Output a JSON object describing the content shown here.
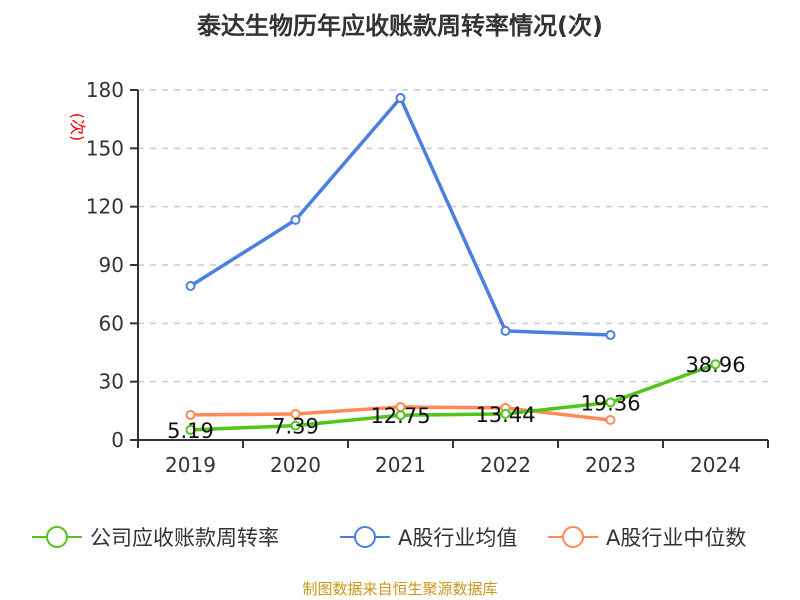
{
  "chart_data": {
    "type": "line",
    "title": "泰达生物历年应收账款周转率情况(次)",
    "ylabel": "(次)",
    "xlabel": "",
    "categories": [
      "2019",
      "2020",
      "2021",
      "2022",
      "2023",
      "2024"
    ],
    "ylim": [
      0,
      180
    ],
    "yticks": [
      0,
      30,
      60,
      90,
      120,
      150,
      180
    ],
    "grid": true,
    "legend_position": "bottom",
    "series": [
      {
        "name": "公司应收账款周转率",
        "color": "#52c41a",
        "values": [
          5.19,
          7.39,
          12.75,
          13.44,
          19.36,
          38.96
        ],
        "labels": [
          "5.19",
          "7.39",
          "12.75",
          "13.44",
          "19.36",
          "38.96"
        ]
      },
      {
        "name": "A股行业均值",
        "color": "#4a7fe0",
        "values": [
          79.2,
          113.2,
          175.9,
          56.1,
          54.0,
          null
        ]
      },
      {
        "name": "A股行业中位数",
        "color": "#ff8a57",
        "values": [
          12.9,
          13.4,
          17.0,
          16.5,
          10.3,
          null
        ]
      }
    ]
  },
  "source": "制图数据来自恒生聚源数据库"
}
